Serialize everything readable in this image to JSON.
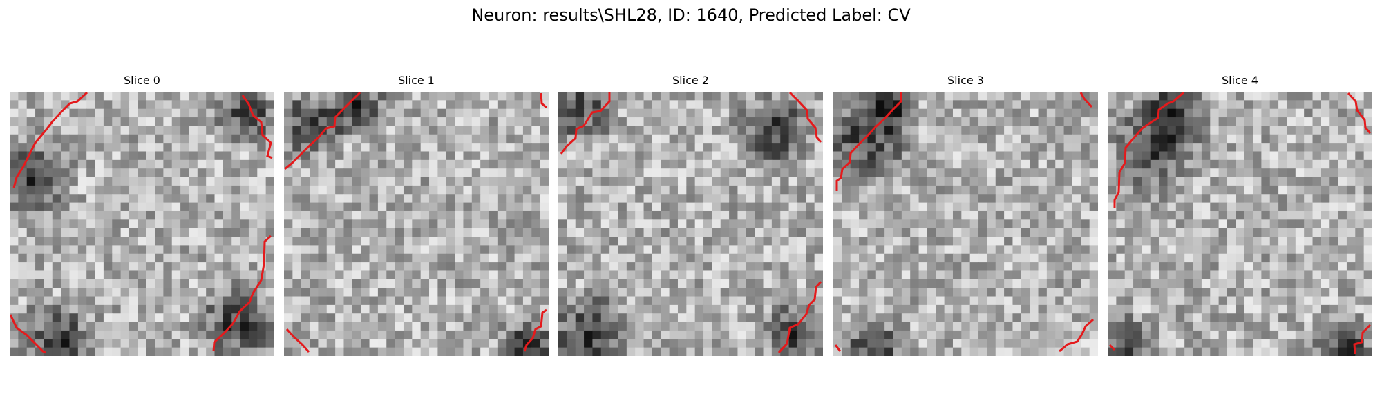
{
  "figure": {
    "title": "Neuron: results\\SHL28, ID: 1640, Predicted Label: CV"
  },
  "slices": [
    {
      "label": "Slice 0"
    },
    {
      "label": "Slice 1"
    },
    {
      "label": "Slice 2"
    },
    {
      "label": "Slice 3"
    },
    {
      "label": "Slice 4"
    }
  ],
  "colors": {
    "contour": "#e41a1c",
    "background": "#ffffff"
  }
}
